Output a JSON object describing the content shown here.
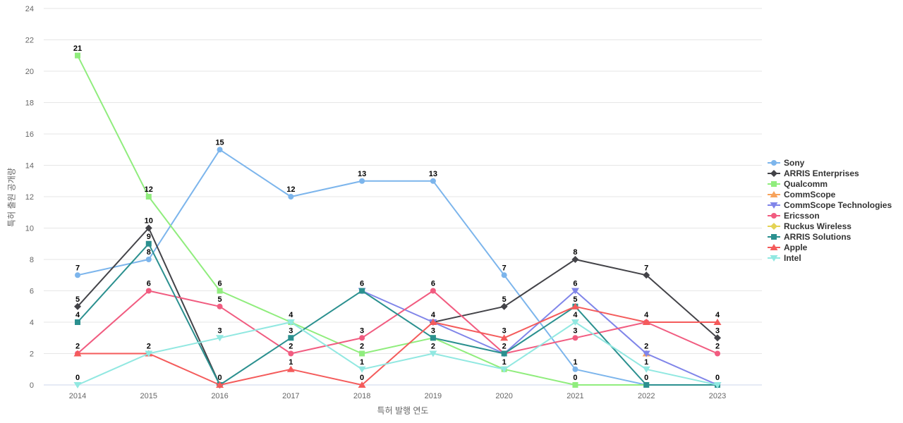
{
  "chart_data": {
    "type": "line",
    "title": "",
    "xlabel": "특허 발행 연도",
    "ylabel": "특허 출원 공개량",
    "x": [
      2014,
      2015,
      2016,
      2017,
      2018,
      2019,
      2020,
      2021,
      2022,
      2023
    ],
    "ylim": [
      0,
      24
    ],
    "ytick_step": 2,
    "grid": "horizontal",
    "legend_position": "right",
    "colors": {
      "gridline": "#e6e6e6",
      "axis_line": "#ccd6eb",
      "tick_label": "#666666",
      "axis_title": "#666666",
      "legend_text": "#333333",
      "data_label": "#000000"
    },
    "series": [
      {
        "name": "Sony",
        "color": "#7cb5ec",
        "marker": "circle",
        "values": [
          7,
          8,
          15,
          12,
          13,
          13,
          7,
          1,
          0,
          0
        ]
      },
      {
        "name": "ARRIS Enterprises",
        "color": "#434348",
        "marker": "diamond",
        "values": [
          5,
          10,
          0,
          null,
          null,
          4,
          5,
          8,
          7,
          3
        ]
      },
      {
        "name": "Qualcomm",
        "color": "#90ed7d",
        "marker": "square",
        "values": [
          21,
          12,
          6,
          4,
          2,
          3,
          1,
          0,
          0,
          0
        ]
      },
      {
        "name": "CommScope",
        "color": "#f7a35c",
        "marker": "triangle",
        "values": [
          null,
          null,
          null,
          null,
          null,
          null,
          null,
          null,
          2,
          null
        ]
      },
      {
        "name": "CommScope Technologies",
        "color": "#8085e9",
        "marker": "triangle-down",
        "values": [
          null,
          null,
          null,
          null,
          6,
          4,
          2,
          6,
          2,
          0
        ]
      },
      {
        "name": "Ericsson",
        "color": "#f15c80",
        "marker": "circle",
        "values": [
          2,
          6,
          5,
          2,
          3,
          6,
          2,
          3,
          4,
          2
        ]
      },
      {
        "name": "Ruckus Wireless",
        "color": "#e4d354",
        "marker": "diamond",
        "values": [
          null,
          null,
          null,
          null,
          null,
          null,
          null,
          null,
          null,
          null
        ]
      },
      {
        "name": "ARRIS Solutions",
        "color": "#2b908f",
        "marker": "square",
        "values": [
          4,
          9,
          0,
          3,
          6,
          3,
          2,
          5,
          0,
          0
        ]
      },
      {
        "name": "Apple",
        "color": "#f45b5b",
        "marker": "triangle",
        "values": [
          2,
          2,
          0,
          1,
          0,
          4,
          3,
          5,
          4,
          4
        ]
      },
      {
        "name": "Intel",
        "color": "#91e8e1",
        "marker": "triangle-down",
        "values": [
          0,
          2,
          3,
          4,
          1,
          2,
          1,
          4,
          1,
          0
        ]
      }
    ]
  }
}
